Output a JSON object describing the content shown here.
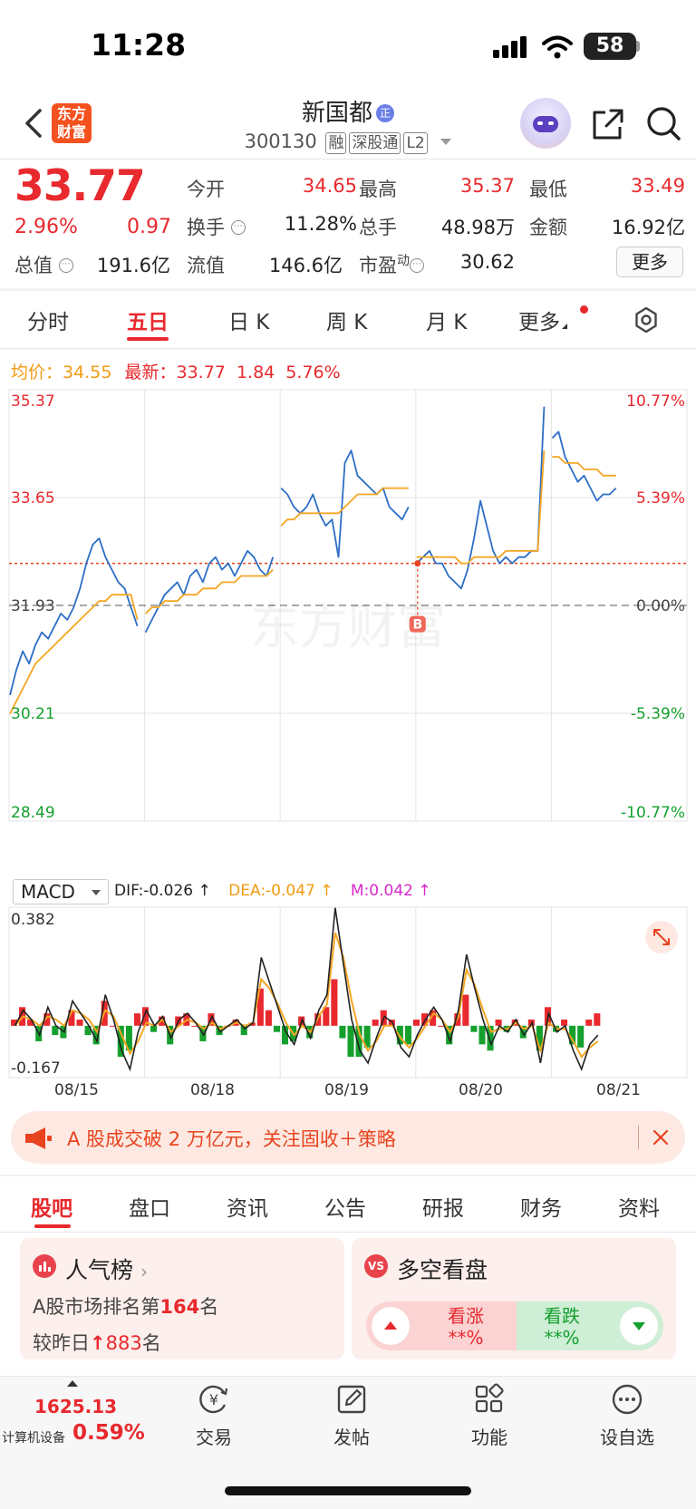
{
  "status_bar": {
    "time": "11:28",
    "battery": "58"
  },
  "header": {
    "logo_text": "东方财富",
    "stock_name": "新国都",
    "badge": "正",
    "stock_code": "300130",
    "tags": [
      "融",
      "深股通",
      "L2"
    ]
  },
  "quote": {
    "price": "33.77",
    "change_pct": "2.96%",
    "change": "0.97",
    "fields": {
      "open_label": "今开",
      "open": "34.65",
      "high_label": "最高",
      "high": "35.37",
      "low_label": "最低",
      "low": "33.49",
      "turnover_label": "换手",
      "turnover": "11.28%",
      "volume_label": "总手",
      "volume": "48.98万",
      "amount_label": "金额",
      "amount": "16.92亿",
      "mktcap_label": "总值",
      "mktcap": "191.6亿",
      "float_label": "流值",
      "float": "146.6亿",
      "pe_label": "市盈",
      "pe_sup": "动",
      "pe": "30.62"
    },
    "more_button": "更多"
  },
  "chart_tabs": [
    "分时",
    "五日",
    "日 K",
    "周 K",
    "月 K",
    "更多"
  ],
  "legend": {
    "avg_label": "均价：",
    "avg_value": "34.55",
    "latest_label": "最新：",
    "latest_value": "33.77",
    "latest_change": "1.84",
    "latest_pct": "5.76%"
  },
  "watermark": "东方财富",
  "chart_data": {
    "type": "line",
    "title": "",
    "y_left_labels": [
      "35.37",
      "33.65",
      "31.93",
      "30.21",
      "28.49"
    ],
    "y_right_labels": [
      "10.77%",
      "5.39%",
      "0.00%",
      "-5.39%",
      "-10.77%"
    ],
    "ylim": [
      28.49,
      35.37
    ],
    "prev_close": 31.93,
    "reference_line_price": 32.6,
    "x_days": [
      "08/15",
      "08/18",
      "08/19",
      "08/20",
      "08/21"
    ],
    "marker": {
      "label": "B",
      "day": "08/20"
    },
    "series": [
      {
        "points": [
          30.5,
          30.9,
          31.2,
          31.0,
          31.3,
          31.5,
          31.4,
          31.6,
          31.8,
          31.7,
          31.9,
          32.2,
          32.6,
          32.9,
          33.0,
          32.7,
          32.5,
          32.3,
          32.2,
          31.9,
          31.6,
          31.5,
          31.7,
          31.9,
          32.1,
          32.2,
          32.3,
          32.1,
          32.4,
          32.5,
          32.3,
          32.6,
          32.7,
          32.5,
          32.6,
          32.4,
          32.6,
          32.8,
          32.7,
          32.5,
          32.4,
          32.7,
          33.8,
          33.7,
          33.5,
          33.4,
          33.5,
          33.7,
          33.4,
          33.2,
          33.3,
          32.7,
          34.2,
          34.4,
          34.0,
          33.9,
          33.8,
          33.7,
          33.8,
          33.5,
          33.4,
          33.3,
          33.5,
          32.6,
          32.7,
          32.8,
          32.6,
          32.6,
          32.4,
          32.3,
          32.2,
          32.5,
          33.0,
          33.6,
          33.2,
          32.8,
          32.6,
          32.7,
          32.6,
          32.7,
          32.7,
          32.8,
          32.8,
          35.1,
          34.6,
          34.7,
          34.3,
          34.1,
          33.9,
          34.0,
          33.8,
          33.6,
          33.7,
          33.7,
          33.8
        ]
      },
      {
        "points": [
          30.2,
          30.4,
          30.6,
          30.8,
          31.0,
          31.1,
          31.2,
          31.3,
          31.4,
          31.5,
          31.6,
          31.7,
          31.8,
          31.9,
          32.0,
          32.0,
          32.1,
          32.1,
          32.1,
          32.1,
          31.7,
          31.8,
          31.9,
          31.9,
          32.0,
          32.0,
          32.0,
          32.1,
          32.1,
          32.1,
          32.2,
          32.2,
          32.2,
          32.3,
          32.3,
          32.3,
          32.4,
          32.4,
          32.4,
          32.4,
          32.4,
          32.5,
          33.2,
          33.3,
          33.3,
          33.4,
          33.4,
          33.4,
          33.4,
          33.4,
          33.4,
          33.4,
          33.5,
          33.6,
          33.7,
          33.7,
          33.7,
          33.7,
          33.8,
          33.8,
          33.8,
          33.8,
          33.8,
          32.7,
          32.7,
          32.7,
          32.7,
          32.7,
          32.7,
          32.7,
          32.6,
          32.6,
          32.7,
          32.7,
          32.7,
          32.7,
          32.7,
          32.8,
          32.8,
          32.8,
          32.8,
          32.8,
          32.8,
          34.4,
          34.3,
          34.3,
          34.2,
          34.2,
          34.2,
          34.1,
          34.1,
          34.1,
          34.0,
          34.0,
          34.0
        ]
      }
    ]
  },
  "macd": {
    "selector": "MACD",
    "dif": "DIF:-0.026 ↑",
    "dea": "DEA:-0.047 ↑",
    "m": "M:0.042 ↑",
    "y_top": "0.382",
    "y_bottom": "-0.167",
    "ylim": [
      -0.167,
      0.382
    ],
    "dif_values": [
      0.0,
      0.05,
      0.02,
      -0.03,
      0.06,
      0.0,
      -0.02,
      0.08,
      0.04,
      0.0,
      -0.05,
      0.1,
      0.02,
      -0.08,
      -0.14,
      -0.02,
      0.05,
      0.0,
      0.03,
      -0.04,
      0.02,
      0.04,
      0.01,
      -0.03,
      0.03,
      -0.02,
      0.0,
      0.02,
      -0.01,
      0.01,
      0.22,
      0.14,
      0.06,
      -0.02,
      -0.06,
      0.02,
      -0.04,
      0.05,
      0.1,
      0.38,
      0.2,
      0.02,
      -0.08,
      -0.12,
      -0.04,
      0.03,
      0.01,
      -0.07,
      -0.1,
      -0.03,
      0.02,
      0.06,
      0.02,
      -0.05,
      0.05,
      0.23,
      0.12,
      0.02,
      -0.06,
      0.0,
      -0.02,
      0.02,
      -0.03,
      0.01,
      -0.12,
      0.04,
      -0.02,
      0.0,
      -0.08,
      -0.14,
      -0.06,
      -0.03
    ],
    "dea_values": [
      0.0,
      0.03,
      0.02,
      0.0,
      0.03,
      0.02,
      0.0,
      0.05,
      0.04,
      0.02,
      -0.02,
      0.05,
      0.03,
      -0.03,
      -0.09,
      -0.05,
      0.01,
      0.0,
      0.02,
      -0.02,
      0.0,
      0.02,
      0.01,
      -0.01,
      0.01,
      -0.01,
      0.0,
      0.01,
      0.0,
      0.01,
      0.15,
      0.12,
      0.07,
      0.01,
      -0.03,
      0.0,
      -0.02,
      0.03,
      0.07,
      0.3,
      0.22,
      0.08,
      -0.03,
      -0.08,
      -0.05,
      0.0,
      0.0,
      -0.04,
      -0.07,
      -0.04,
      0.0,
      0.04,
      0.02,
      -0.02,
      0.03,
      0.18,
      0.13,
      0.05,
      -0.02,
      -0.01,
      -0.01,
      0.01,
      -0.01,
      0.0,
      -0.08,
      0.01,
      -0.01,
      -0.01,
      -0.05,
      -0.1,
      -0.07,
      -0.05
    ],
    "m_values": [
      0.02,
      0.06,
      0.02,
      -0.05,
      0.04,
      -0.03,
      -0.04,
      0.05,
      0.02,
      -0.03,
      -0.06,
      0.08,
      0.0,
      -0.1,
      -0.08,
      0.04,
      0.06,
      -0.02,
      0.03,
      -0.06,
      0.03,
      0.04,
      0.0,
      -0.05,
      0.04,
      -0.03,
      0.0,
      0.02,
      -0.03,
      0.01,
      0.12,
      0.05,
      -0.02,
      -0.06,
      -0.05,
      0.03,
      -0.04,
      0.04,
      0.06,
      0.15,
      -0.04,
      -0.1,
      -0.1,
      -0.07,
      0.02,
      0.05,
      0.02,
      -0.06,
      -0.06,
      0.02,
      0.04,
      0.05,
      0.0,
      -0.06,
      0.04,
      0.1,
      -0.02,
      -0.06,
      -0.08,
      0.02,
      -0.02,
      0.02,
      -0.04,
      0.02,
      -0.08,
      0.06,
      -0.02,
      0.02,
      -0.06,
      -0.07,
      0.02,
      0.04
    ]
  },
  "banner": {
    "text": "A 股成交破 2 万亿元，关注固收＋策略"
  },
  "bottom_tabs": [
    "股吧",
    "盘口",
    "资讯",
    "公告",
    "研报",
    "财务",
    "资料"
  ],
  "rank_card": {
    "title": "人气榜",
    "line1_prefix": "A股市场排名第",
    "rank": "164",
    "line1_suffix": "名",
    "line2_prefix": "较昨日",
    "rank_change": "883",
    "line2_suffix": "名"
  },
  "vote_card": {
    "icon_text": "VS",
    "title": "多空看盘",
    "up_label": "看涨",
    "up_value": "**%",
    "down_label": "看跌",
    "down_value": "**%"
  },
  "bottom_nav": {
    "index_value": "1625.13",
    "index_name": "计算机设备",
    "index_pct": "0.59%",
    "items": [
      "交易",
      "发帖",
      "功能",
      "设自选"
    ]
  }
}
